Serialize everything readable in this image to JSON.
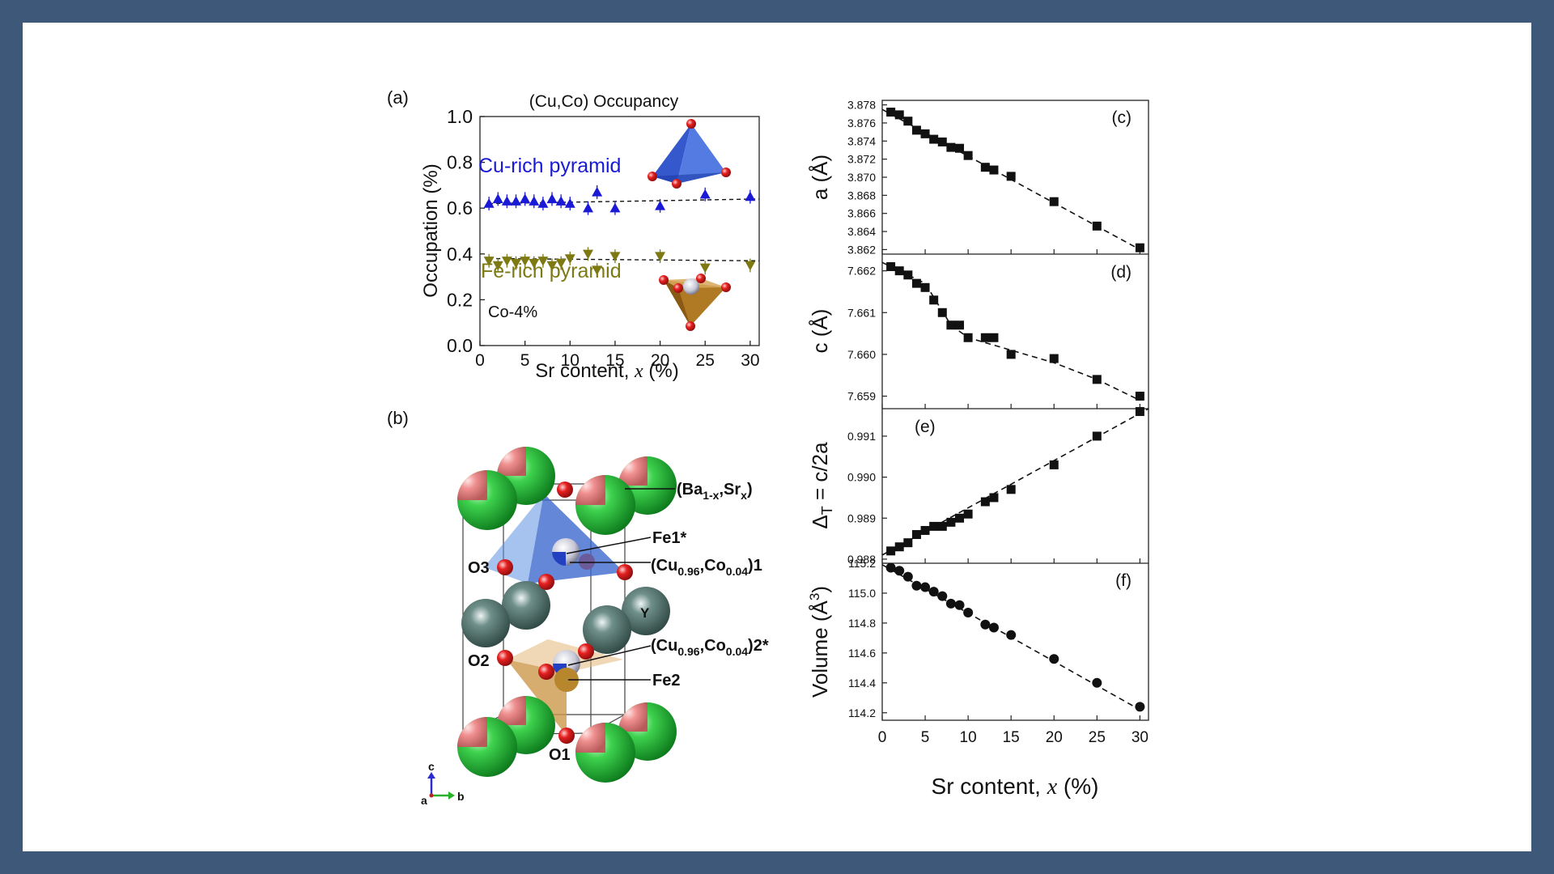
{
  "colors": {
    "frame": "#3d5878",
    "cu_series": "#1a1ad6",
    "fe_series": "#7d7a14",
    "markers": "#111111",
    "ba_sr_atom": "#2fbf3f",
    "sr_fraction": "#e98686",
    "y_atom": "#4e6b66",
    "o_atom": "#d81818",
    "cu_pyramid": "#3f6fd6",
    "fe_pyramid": "#c9913a"
  },
  "panel_a": {
    "tag": "(a)",
    "title": "(Cu,Co) Occupancy",
    "cu_label": "Cu-rich pyramid",
    "fe_label": "Fe-rich pyramid",
    "composition": "Co-4%"
  },
  "panel_b": {
    "tag": "(b)",
    "labels": {
      "ba": "(Ba",
      "ba_sub": "1-x",
      "sr": ",Sr",
      "sr_sub": "x",
      "close": ")",
      "fe1": "Fe1*",
      "cu1_a": "(Cu",
      "cu1_s1": "0.96",
      "cu1_b": ",Co",
      "cu1_s2": "0.04",
      "cu1_c": ")1",
      "cu2_c": ")2*",
      "fe2": "Fe2",
      "y": "Y",
      "o1": "O1",
      "o2": "O2",
      "o3": "O3"
    },
    "axes": {
      "c": "c",
      "a": "a",
      "b": "b"
    }
  },
  "chart_data": [
    {
      "panel": "(a)",
      "type": "scatter",
      "title": "(Cu,Co) Occupancy",
      "xlabel": "Sr content, x (%)",
      "ylabel": "Occupation (%)",
      "xlim": [
        0,
        31
      ],
      "ylim": [
        0,
        1.0
      ],
      "xticks": [
        0,
        5,
        10,
        15,
        20,
        25,
        30
      ],
      "yticks": [
        0.0,
        0.2,
        0.4,
        0.6,
        0.8,
        1.0
      ],
      "ytick_labels": [
        "0.0",
        "0.2",
        "0.4",
        "0.6",
        "0.8",
        "1.0"
      ],
      "series": [
        {
          "name": "Cu-rich pyramid",
          "marker": "triangle-up",
          "x": [
            1,
            2,
            3,
            4,
            5,
            6,
            7,
            8,
            9,
            10,
            12,
            13,
            15,
            20,
            25,
            30
          ],
          "y": [
            0.62,
            0.64,
            0.63,
            0.63,
            0.64,
            0.63,
            0.62,
            0.64,
            0.63,
            0.62,
            0.6,
            0.67,
            0.6,
            0.61,
            0.66,
            0.65
          ],
          "err": [
            0.03,
            0.03,
            0.03,
            0.03,
            0.03,
            0.03,
            0.03,
            0.03,
            0.03,
            0.03,
            0.03,
            0.03,
            0.03,
            0.03,
            0.03,
            0.03
          ],
          "fit": [
            0.62,
            0.64
          ]
        },
        {
          "name": "Fe-rich pyramid",
          "marker": "triangle-down",
          "x": [
            1,
            2,
            3,
            4,
            5,
            6,
            7,
            8,
            9,
            10,
            12,
            13,
            15,
            20,
            25,
            30
          ],
          "y": [
            0.37,
            0.35,
            0.37,
            0.36,
            0.37,
            0.36,
            0.37,
            0.35,
            0.36,
            0.38,
            0.4,
            0.33,
            0.39,
            0.39,
            0.34,
            0.35
          ],
          "err": [
            0.03,
            0.03,
            0.03,
            0.03,
            0.03,
            0.03,
            0.03,
            0.03,
            0.03,
            0.03,
            0.03,
            0.03,
            0.03,
            0.03,
            0.03,
            0.03
          ],
          "fit": [
            0.38,
            0.37
          ]
        }
      ]
    },
    {
      "panel": "(c)",
      "type": "scatter",
      "ylabel": "a (Å)",
      "xlim": [
        0,
        31
      ],
      "ylim": [
        3.8615,
        3.8785
      ],
      "yticks": [
        3.862,
        3.864,
        3.866,
        3.868,
        3.87,
        3.872,
        3.874,
        3.876,
        3.878
      ],
      "ytick_labels": [
        "3.862",
        "3.864",
        "3.866",
        "3.868",
        "3.870",
        "3.872",
        "3.874",
        "3.876",
        "3.878"
      ],
      "marker": "square",
      "x": [
        1,
        2,
        3,
        4,
        5,
        6,
        7,
        8,
        9,
        10,
        12,
        13,
        15,
        20,
        25,
        30
      ],
      "y": [
        3.8772,
        3.8769,
        3.8762,
        3.8752,
        3.8748,
        3.8742,
        3.8739,
        3.8733,
        3.8732,
        3.8724,
        3.8711,
        3.8708,
        3.8701,
        3.8673,
        3.8646,
        3.8622
      ],
      "fit": [
        [
          0,
          3.8775
        ],
        [
          30,
          3.862
        ]
      ]
    },
    {
      "panel": "(d)",
      "type": "scatter",
      "ylabel": "c (Å)",
      "xlim": [
        0,
        31
      ],
      "ylim": [
        7.6587,
        7.6624
      ],
      "yticks": [
        7.659,
        7.66,
        7.661,
        7.662
      ],
      "ytick_labels": [
        "7.659",
        "7.660",
        "7.661",
        "7.662"
      ],
      "marker": "square",
      "x": [
        1,
        2,
        3,
        4,
        5,
        6,
        7,
        8,
        9,
        10,
        12,
        13,
        15,
        20,
        25,
        30
      ],
      "y": [
        7.6621,
        7.662,
        7.6619,
        7.6617,
        7.6616,
        7.6613,
        7.661,
        7.6607,
        7.6607,
        7.6604,
        7.6604,
        7.6604,
        7.66,
        7.6599,
        7.6594,
        7.659
      ],
      "fit": [
        [
          0,
          7.6622
        ],
        [
          5,
          7.6617
        ],
        [
          8,
          7.6607
        ],
        [
          10,
          7.6604
        ],
        [
          15,
          7.6601
        ],
        [
          20,
          7.6598
        ],
        [
          25,
          7.6594
        ],
        [
          30,
          7.6589
        ]
      ]
    },
    {
      "panel": "(e)",
      "type": "scatter",
      "ylabel": "ΔT = c/2a",
      "xlim": [
        0,
        31
      ],
      "ylim": [
        0.9879,
        0.99167
      ],
      "yticks": [
        0.988,
        0.989,
        0.99,
        0.991
      ],
      "ytick_labels": [
        "0.988",
        "0.989",
        "0.990",
        "0.991"
      ],
      "marker": "square",
      "x": [
        1,
        2,
        3,
        4,
        5,
        6,
        7,
        8,
        9,
        10,
        12,
        13,
        15,
        20,
        25,
        30
      ],
      "y": [
        0.9882,
        0.9883,
        0.9884,
        0.9886,
        0.9887,
        0.9888,
        0.9888,
        0.9889,
        0.989,
        0.9891,
        0.9894,
        0.9895,
        0.9897,
        0.9903,
        0.991,
        0.9916
      ],
      "fit": [
        [
          0,
          0.9881
        ],
        [
          31,
          0.99167
        ]
      ]
    },
    {
      "panel": "(f)",
      "type": "scatter",
      "xlabel": "Sr content, x (%)",
      "ylabel": "Volume (Å³)",
      "xlim": [
        0,
        31
      ],
      "ylim": [
        114.15,
        115.2
      ],
      "xticks": [
        0,
        5,
        10,
        15,
        20,
        25,
        30
      ],
      "yticks": [
        114.2,
        114.4,
        114.6,
        114.8,
        115.0,
        115.2
      ],
      "ytick_labels": [
        "114.2",
        "114.4",
        "114.6",
        "114.8",
        "115.0",
        "115.2"
      ],
      "marker": "circle",
      "x": [
        1,
        2,
        3,
        4,
        5,
        6,
        7,
        8,
        9,
        10,
        12,
        13,
        15,
        20,
        25,
        30
      ],
      "y": [
        115.17,
        115.15,
        115.11,
        115.05,
        115.04,
        115.01,
        114.98,
        114.93,
        114.92,
        114.87,
        114.79,
        114.77,
        114.72,
        114.56,
        114.4,
        114.24
      ],
      "fit": [
        [
          0,
          115.19
        ],
        [
          30,
          114.22
        ]
      ]
    }
  ]
}
